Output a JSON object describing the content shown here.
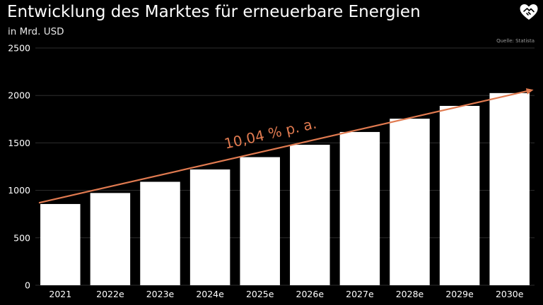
{
  "title": "Entwicklung des Marktes für erneuerbare Energien",
  "subtitle": "in Mrd. USD",
  "source": "Quelle: Statista",
  "logo_icon": "heart-handshake-icon",
  "colors": {
    "background": "#000000",
    "bars": "#ffffff",
    "trend": "#e07a50",
    "grid": "#2e2e2e",
    "text": "#ffffff"
  },
  "chart_data": {
    "type": "bar",
    "categories": [
      "2021",
      "2022e",
      "2023e",
      "2024e",
      "2025e",
      "2026e",
      "2027e",
      "2028e",
      "2029e",
      "2030e"
    ],
    "values": [
      856,
      972,
      1090,
      1220,
      1350,
      1480,
      1615,
      1755,
      1890,
      2025
    ],
    "ylim": [
      0,
      2500
    ],
    "yticks": [
      0,
      500,
      1000,
      1500,
      2000,
      2500
    ],
    "grid": true,
    "annotation": {
      "text": "10,04 % p. a.",
      "from_value": 870,
      "to_value": 2060
    }
  }
}
